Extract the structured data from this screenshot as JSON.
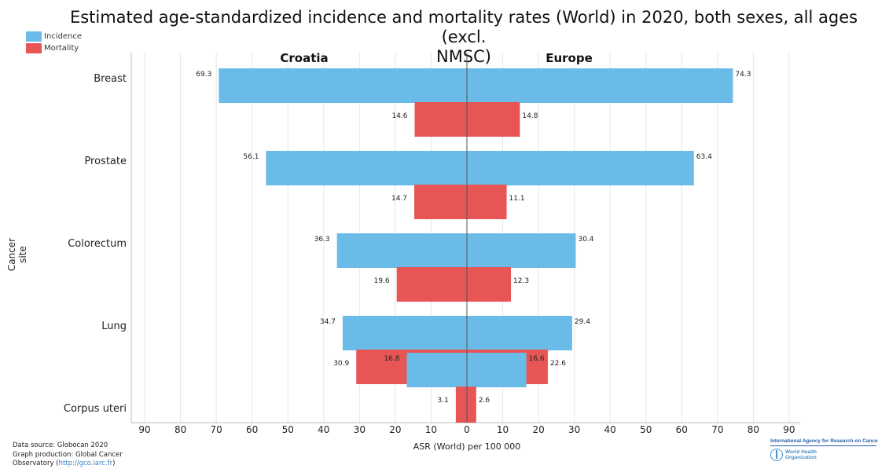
{
  "chart_data": {
    "type": "bar",
    "title_line1": "Estimated age-standardized incidence and mortality rates (World) in 2020, both sexes, all ages (excl.",
    "title_line2": "NMSC)",
    "left_panel_label": "Croatia",
    "right_panel_label": "Europe",
    "ylabel": "Cancer site",
    "xlabel": "ASR (World) per 100 000",
    "x_ticks": [
      90,
      80,
      70,
      60,
      50,
      40,
      30,
      20,
      10,
      0,
      10,
      20,
      30,
      40,
      50,
      60,
      70,
      80,
      90
    ],
    "xlim": [
      -95,
      95
    ],
    "categories": [
      "Breast",
      "Prostate",
      "Colorectum",
      "Lung",
      "Corpus uteri"
    ],
    "series": [
      {
        "name": "Incidence",
        "color": "#6bbbe8",
        "left_values": [
          69.3,
          56.1,
          36.3,
          34.7,
          16.8
        ],
        "right_values": [
          74.3,
          63.4,
          30.4,
          29.4,
          16.6
        ]
      },
      {
        "name": "Mortality",
        "color": "#e85555",
        "left_values": [
          14.6,
          14.7,
          19.6,
          30.9,
          3.1
        ],
        "right_values": [
          14.8,
          11.1,
          12.3,
          22.6,
          2.6
        ]
      }
    ],
    "legend_position": "top-left",
    "grid": true
  },
  "footer": {
    "source_line1": "Data source: Globocan 2020",
    "source_line2": "Graph production: Global Cancer",
    "source_line3_prefix": "Observatory (",
    "source_link": "http://gco.iarc.fr",
    "source_line3_suffix": ")"
  },
  "logos": {
    "iarc": "International Agency for Research on Cancer",
    "who_line1": "World Health",
    "who_line2": "Organization"
  }
}
